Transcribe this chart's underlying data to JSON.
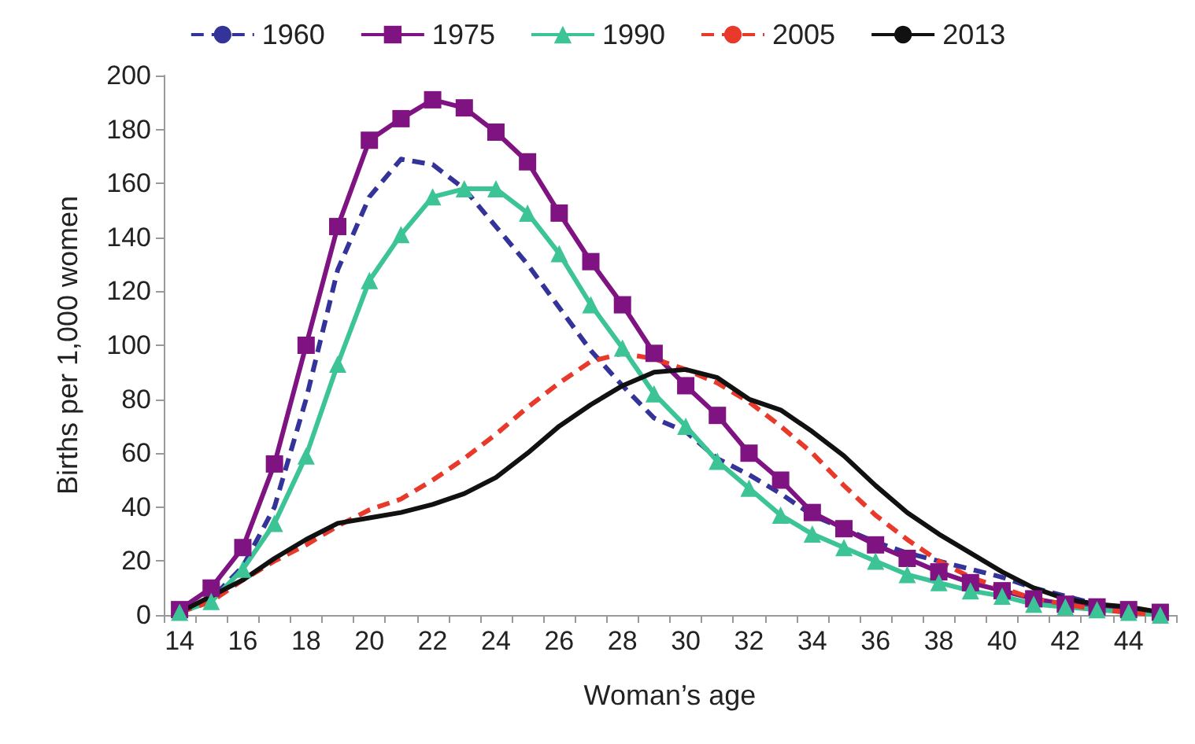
{
  "chart_data": {
    "type": "line",
    "xlabel": "Woman’s age",
    "ylabel": "Births per 1,000 women",
    "categories": [
      "14",
      null,
      "16",
      null,
      "18",
      null,
      "20",
      null,
      "22",
      null,
      "24",
      null,
      "26",
      null,
      "28",
      null,
      "30",
      null,
      "32",
      null,
      "34",
      null,
      "36",
      null,
      "38",
      null,
      "40",
      null,
      "42",
      null,
      "44",
      null
    ],
    "ylim": [
      0,
      200
    ],
    "yticks": [
      0,
      20,
      40,
      60,
      80,
      100,
      120,
      140,
      160,
      180,
      200
    ],
    "grid": false,
    "legend": "top",
    "series": [
      {
        "name": "1960",
        "color": "#333399",
        "line_style": "dashed",
        "marker": "none",
        "values": [
          2,
          6,
          18,
          40,
          80,
          128,
          155,
          169,
          167,
          158,
          144,
          130,
          114,
          98,
          85,
          73,
          68,
          58,
          52,
          45,
          37,
          32,
          27,
          23,
          20,
          17,
          14,
          10,
          7,
          4,
          2,
          1
        ]
      },
      {
        "name": "1975",
        "color": "#7f1382",
        "line_style": "solid",
        "marker": "square",
        "values": [
          2,
          10,
          25,
          56,
          100,
          144,
          176,
          184,
          191,
          188,
          179,
          168,
          149,
          131,
          115,
          97,
          85,
          74,
          60,
          50,
          38,
          32,
          26,
          21,
          16,
          12,
          9,
          6,
          4,
          3,
          2,
          1
        ]
      },
      {
        "name": "1990",
        "color": "#3cc496",
        "line_style": "solid",
        "marker": "triangle",
        "values": [
          1,
          5,
          17,
          34,
          59,
          93,
          124,
          141,
          155,
          158,
          158,
          149,
          134,
          115,
          99,
          82,
          70,
          57,
          47,
          37,
          30,
          25,
          20,
          15,
          12,
          9,
          7,
          4,
          3,
          2,
          1,
          0
        ]
      },
      {
        "name": "2005",
        "color": "#e8392a",
        "line_style": "dashed",
        "marker": "none",
        "values": [
          1,
          5,
          13,
          20,
          26,
          33,
          39,
          43,
          50,
          58,
          67,
          77,
          86,
          94,
          97,
          95,
          91,
          86,
          79,
          70,
          60,
          48,
          37,
          28,
          20,
          14,
          10,
          6,
          4,
          2,
          1,
          0
        ]
      },
      {
        "name": "2013",
        "color": "#111111",
        "line_style": "solid",
        "marker": "none",
        "values": [
          1,
          7,
          13,
          21,
          28,
          34,
          36,
          38,
          41,
          45,
          51,
          60,
          70,
          78,
          85,
          90,
          91,
          88,
          80,
          76,
          68,
          59,
          48,
          38,
          30,
          23,
          16,
          10,
          6,
          4,
          3,
          1
        ]
      }
    ]
  }
}
